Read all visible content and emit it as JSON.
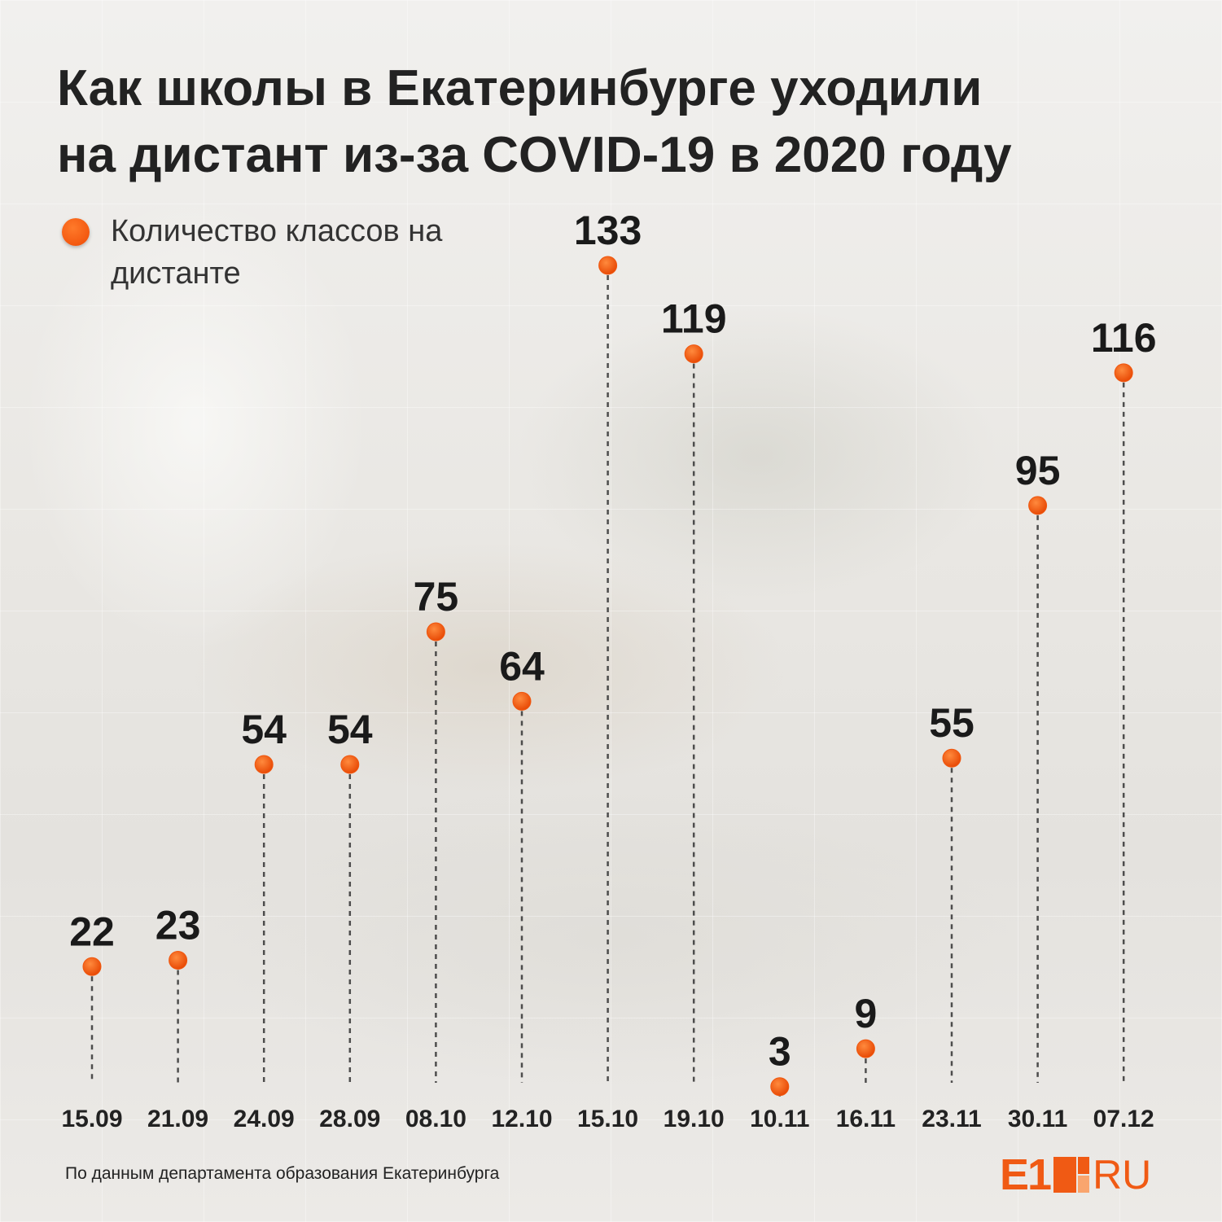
{
  "title_lines": [
    "Как школы в Екатеринбурге уходили",
    "на дистант из-за COVID-19 в 2020 году"
  ],
  "legend": {
    "label": "Количество классов на дистанте",
    "color": "#f0570f"
  },
  "source": "По данным департамента образования Екатеринбурга",
  "logo": {
    "left": "E1",
    "right": "RU",
    "color": "#f05a14"
  },
  "chart_data": {
    "type": "scatter",
    "title": "Как школы в Екатеринбурге уходили на дистант из-за COVID-19 в 2020 году",
    "categories": [
      "15.09",
      "21.09",
      "24.09",
      "28.09",
      "08.10",
      "12.10",
      "15.10",
      "19.10",
      "10.11",
      "16.11",
      "23.11",
      "30.11",
      "07.12"
    ],
    "series": [
      {
        "name": "Количество классов на дистанте",
        "values": [
          22,
          23,
          54,
          54,
          75,
          64,
          133,
          119,
          3,
          9,
          55,
          95,
          116
        ],
        "color": "#f0570f"
      }
    ],
    "ylim": [
      0,
      133
    ],
    "grid": false,
    "legend_position": "top-left",
    "marker_style": "dot with dashed drop line"
  }
}
